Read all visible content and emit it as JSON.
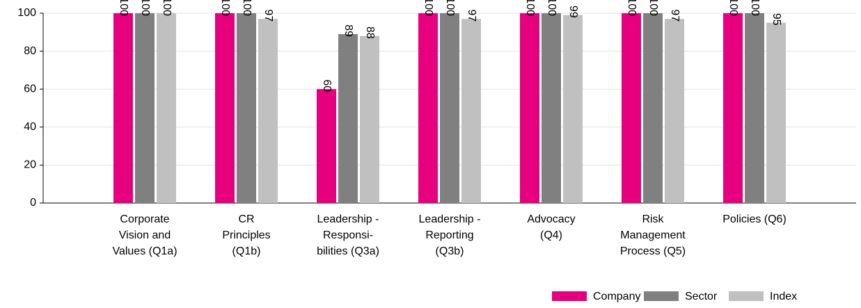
{
  "chart_data": {
    "type": "bar",
    "categories": [
      [
        "Corporate",
        "Vision and",
        "Values (Q1a)"
      ],
      [
        "CR",
        "Principles",
        "(Q1b)"
      ],
      [
        "Leadership -",
        "Responsi-",
        "bilities (Q3a)"
      ],
      [
        "Leadership -",
        "Reporting",
        "(Q3b)"
      ],
      [
        "Advocacy",
        "(Q4)"
      ],
      [
        "Risk",
        "Management",
        "Process (Q5)"
      ],
      [
        "Policies (Q6)"
      ]
    ],
    "series": [
      {
        "name": "Company",
        "color": "#e6007e",
        "values": [
          100,
          100,
          60,
          100,
          100,
          100,
          100
        ]
      },
      {
        "name": "Sector",
        "color": "#808080",
        "values": [
          100,
          100,
          89,
          100,
          100,
          100,
          100
        ]
      },
      {
        "name": "Index",
        "color": "#c0c0c0",
        "values": [
          100,
          97,
          88,
          97,
          99,
          97,
          95
        ]
      }
    ],
    "ylim": [
      0,
      100
    ],
    "yticks": [
      0,
      20,
      40,
      60,
      80,
      100
    ],
    "grid": true,
    "legend": "bottom-right"
  }
}
